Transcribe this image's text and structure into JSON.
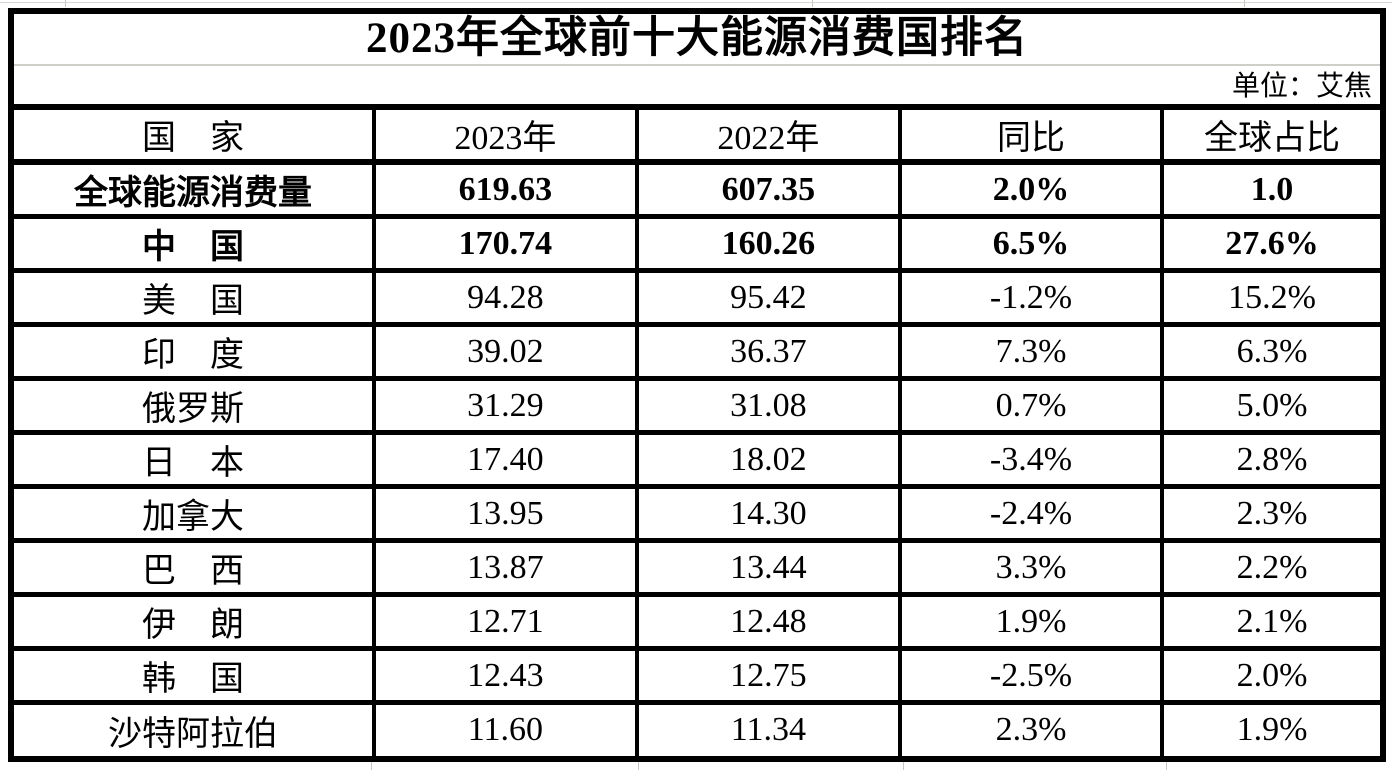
{
  "title": "2023年全球前十大能源消费国排名",
  "unit_label": "单位：艾焦",
  "table": {
    "columns": [
      "国　家",
      "2023年",
      "2022年",
      "同比",
      "全球占比"
    ],
    "rows": [
      {
        "name": "全球能源消费量",
        "v2023": "619.63",
        "v2022": "607.35",
        "yoy": "2.0%",
        "share": "1.0",
        "bold": true
      },
      {
        "name": "中　国",
        "v2023": "170.74",
        "v2022": "160.26",
        "yoy": "6.5%",
        "share": "27.6%",
        "bold": true
      },
      {
        "name": "美　国",
        "v2023": "94.28",
        "v2022": "95.42",
        "yoy": "-1.2%",
        "share": "15.2%",
        "bold": false
      },
      {
        "name": "印　度",
        "v2023": "39.02",
        "v2022": "36.37",
        "yoy": "7.3%",
        "share": "6.3%",
        "bold": false
      },
      {
        "name": "俄罗斯",
        "v2023": "31.29",
        "v2022": "31.08",
        "yoy": "0.7%",
        "share": "5.0%",
        "bold": false
      },
      {
        "name": "日　本",
        "v2023": "17.40",
        "v2022": "18.02",
        "yoy": "-3.4%",
        "share": "2.8%",
        "bold": false
      },
      {
        "name": "加拿大",
        "v2023": "13.95",
        "v2022": "14.30",
        "yoy": "-2.4%",
        "share": "2.3%",
        "bold": false
      },
      {
        "name": "巴　西",
        "v2023": "13.87",
        "v2022": "13.44",
        "yoy": "3.3%",
        "share": "2.2%",
        "bold": false
      },
      {
        "name": "伊　朗",
        "v2023": "12.71",
        "v2022": "12.48",
        "yoy": "1.9%",
        "share": "2.1%",
        "bold": false
      },
      {
        "name": "韩　国",
        "v2023": "12.43",
        "v2022": "12.75",
        "yoy": "-2.5%",
        "share": "2.0%",
        "bold": false
      },
      {
        "name": "沙特阿拉伯",
        "v2023": "11.60",
        "v2022": "11.34",
        "yoy": "2.3%",
        "share": "1.9%",
        "bold": false
      }
    ]
  },
  "colors": {
    "border": "#000000",
    "background": "#ffffff",
    "text": "#000000",
    "faint_gridline": "#d8d8d4"
  },
  "chart_data": {
    "type": "table",
    "title": "2023年全球前十大能源消费国排名",
    "unit": "艾焦",
    "columns": [
      "国家",
      "2023年",
      "2022年",
      "同比",
      "全球占比"
    ],
    "rows": [
      [
        "全球能源消费量",
        619.63,
        607.35,
        "2.0%",
        "1.0"
      ],
      [
        "中国",
        170.74,
        160.26,
        "6.5%",
        "27.6%"
      ],
      [
        "美国",
        94.28,
        95.42,
        "-1.2%",
        "15.2%"
      ],
      [
        "印度",
        39.02,
        36.37,
        "7.3%",
        "6.3%"
      ],
      [
        "俄罗斯",
        31.29,
        31.08,
        "0.7%",
        "5.0%"
      ],
      [
        "日本",
        17.4,
        18.02,
        "-3.4%",
        "2.8%"
      ],
      [
        "加拿大",
        13.95,
        14.3,
        "-2.4%",
        "2.3%"
      ],
      [
        "巴西",
        13.87,
        13.44,
        "3.3%",
        "2.2%"
      ],
      [
        "伊朗",
        12.71,
        12.48,
        "1.9%",
        "2.1%"
      ],
      [
        "韩国",
        12.43,
        12.75,
        "-2.5%",
        "2.0%"
      ],
      [
        "沙特阿拉伯",
        11.6,
        11.34,
        "2.3%",
        "1.9%"
      ]
    ]
  }
}
